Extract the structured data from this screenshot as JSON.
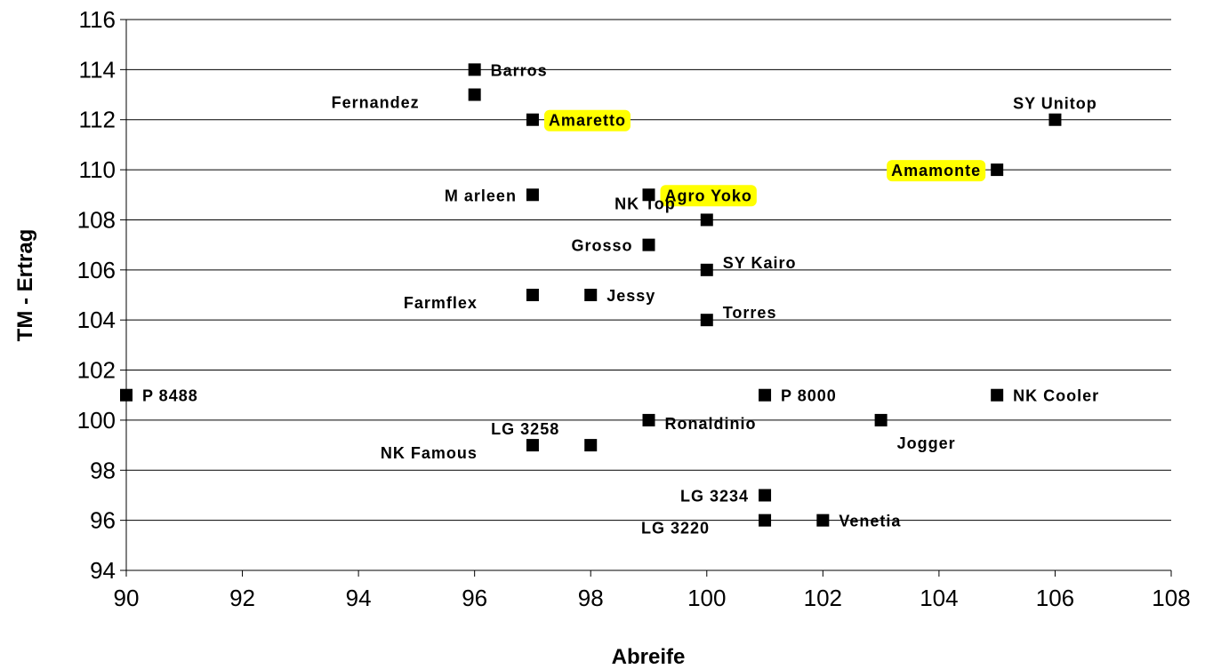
{
  "chart_data": {
    "type": "scatter",
    "xlabel": "Abreife",
    "ylabel": "TM - Ertrag",
    "xlim": [
      90,
      108
    ],
    "ylim": [
      94,
      116
    ],
    "xticks": [
      90,
      92,
      94,
      96,
      98,
      100,
      102,
      104,
      106,
      108
    ],
    "yticks": [
      94,
      96,
      98,
      100,
      102,
      104,
      106,
      108,
      110,
      112,
      114,
      116
    ],
    "grid": "horizontal",
    "highlight_color": "#ffff00",
    "marker_color": "#000000",
    "points": [
      {
        "label": "Barros",
        "x": 96,
        "y": 114,
        "label_pos": "right"
      },
      {
        "label": "Fernandez",
        "x": 96,
        "y": 113,
        "label_pos": "left-below"
      },
      {
        "label": "Amaretto",
        "x": 97,
        "y": 112,
        "label_pos": "right",
        "highlight": true
      },
      {
        "label": "SY Unitop",
        "x": 106,
        "y": 112,
        "label_pos": "above"
      },
      {
        "label": "Amamonte",
        "x": 105,
        "y": 110,
        "label_pos": "left",
        "highlight": true
      },
      {
        "label": "M arleen",
        "x": 97,
        "y": 109,
        "label_pos": "left"
      },
      {
        "label": "Agro Yoko",
        "x": 99,
        "y": 109,
        "label_pos": "right",
        "highlight": true
      },
      {
        "label": "NK Top",
        "x": 100,
        "y": 108,
        "label_pos": "left-above"
      },
      {
        "label": "Grosso",
        "x": 99,
        "y": 107,
        "label_pos": "left"
      },
      {
        "label": "SY Kairo",
        "x": 100,
        "y": 106,
        "label_pos": "right-above"
      },
      {
        "label": "Farmflex",
        "x": 97,
        "y": 105,
        "label_pos": "left-below"
      },
      {
        "label": "Jessy",
        "x": 98,
        "y": 105,
        "label_pos": "right"
      },
      {
        "label": "Torres",
        "x": 100,
        "y": 104,
        "label_pos": "right-above"
      },
      {
        "label": "P 8488",
        "x": 90,
        "y": 101,
        "label_pos": "right"
      },
      {
        "label": "P 8000",
        "x": 101,
        "y": 101,
        "label_pos": "right"
      },
      {
        "label": "NK Cooler",
        "x": 105,
        "y": 101,
        "label_pos": "right"
      },
      {
        "label": "Ronaldinio",
        "x": 99,
        "y": 100,
        "label_pos": "right-below"
      },
      {
        "label": "Jogger",
        "x": 103,
        "y": 100,
        "label_pos": "right-below-far"
      },
      {
        "label": "LG 3258",
        "x": 98,
        "y": 99,
        "label_pos": "left-above"
      },
      {
        "label": "NK Famous",
        "x": 97,
        "y": 99,
        "label_pos": "left-below"
      },
      {
        "label": "LG 3234",
        "x": 101,
        "y": 97,
        "label_pos": "left"
      },
      {
        "label": "LG 3220",
        "x": 101,
        "y": 96,
        "label_pos": "left-below"
      },
      {
        "label": "Venetia",
        "x": 102,
        "y": 96,
        "label_pos": "right"
      }
    ]
  }
}
